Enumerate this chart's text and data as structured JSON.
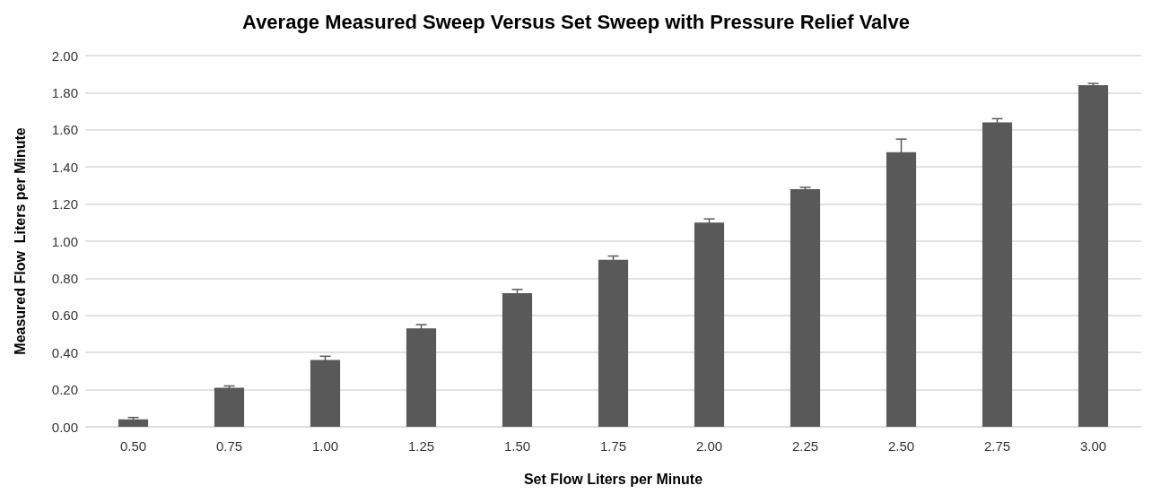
{
  "chart_data": {
    "type": "bar",
    "title": "Average Measured Sweep Versus Set Sweep with Pressure Relief Valve",
    "xlabel": "Set Flow Liters per Minute",
    "ylabel": "Measured Flow  Liters per Minute",
    "categories": [
      "0.50",
      "0.75",
      "1.00",
      "1.25",
      "1.50",
      "1.75",
      "2.00",
      "2.25",
      "2.50",
      "2.75",
      "3.00"
    ],
    "values": [
      0.04,
      0.21,
      0.36,
      0.53,
      0.72,
      0.9,
      1.1,
      1.28,
      1.48,
      1.64,
      1.84
    ],
    "errors": [
      0.01,
      0.01,
      0.02,
      0.02,
      0.02,
      0.02,
      0.02,
      0.01,
      0.07,
      0.02,
      0.01
    ],
    "color": "#595959",
    "ylim": [
      0,
      2
    ],
    "yticks": [
      {
        "value": 0,
        "label": "0.00"
      },
      {
        "value": 0.2,
        "label": "0.20"
      },
      {
        "value": 0.4,
        "label": "0.40"
      },
      {
        "value": 0.6,
        "label": "0.60"
      },
      {
        "value": 0.8,
        "label": "0.80"
      },
      {
        "value": 1,
        "label": "1.00"
      },
      {
        "value": 1.2,
        "label": "1.20"
      },
      {
        "value": 1.4,
        "label": "1.40"
      },
      {
        "value": 1.6,
        "label": "1.60"
      },
      {
        "value": 1.8,
        "label": "1.80"
      },
      {
        "value": 2,
        "label": "2.00"
      }
    ],
    "grid": "y"
  }
}
